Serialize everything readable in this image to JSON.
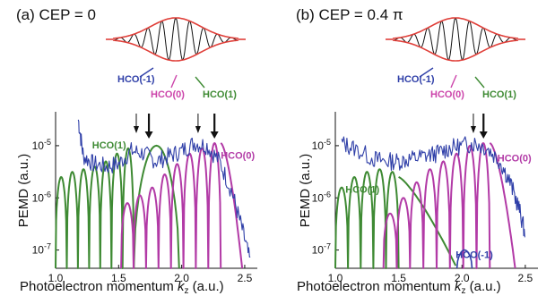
{
  "colors": {
    "blue": "#2f3fa8",
    "magenta": "#b23aa6",
    "green": "#3e8a33",
    "red": "#d03a2a",
    "env": "#e0403a",
    "pink": "#cc44aa"
  },
  "chart_data": [
    {
      "type": "line",
      "title": "(a) CEP = 0",
      "xlabel": "Photoelectron momentum",
      "xlabel_sym": "k",
      "xlabel_sub": "z",
      "xlabel_unit": "(a.u.)",
      "ylabel": "PEMD (a.u.)",
      "xlim": [
        1.0,
        2.6
      ],
      "ylim_log10": [
        -7.35,
        -4.35
      ],
      "xticks": [
        "1.0",
        "1.5",
        "2.0",
        "2.5"
      ],
      "yticks": [
        {
          "base": "10",
          "exp": "-7"
        },
        {
          "base": "10",
          "exp": "-6"
        },
        {
          "base": "10",
          "exp": "-5"
        }
      ],
      "inset_labels": [
        "HCO(-1)",
        "HCO(0)",
        "HCO(1)"
      ],
      "series_labels": [
        {
          "text": "HCO(1)",
          "x": 1.29,
          "y": -5.05,
          "color": "green"
        },
        {
          "text": "HCO(0)",
          "x": 2.31,
          "y": -5.25,
          "color": "magenta"
        }
      ],
      "arrows": [
        {
          "x": 1.64,
          "bold": false
        },
        {
          "x": 1.74,
          "bold": true
        },
        {
          "x": 2.13,
          "bold": false
        },
        {
          "x": 2.26,
          "bold": true
        }
      ],
      "green_curve": {
        "x_start": 1.0,
        "x_end": 1.62,
        "peaks": [
          -5.6,
          -5.5,
          -5.45,
          -5.4,
          -5.3,
          -5.15,
          -5.05
        ]
      },
      "green_bump": {
        "x_start": 1.62,
        "x_end": 1.98,
        "peak": -5.0
      },
      "magenta_curve": {
        "x_start": 1.52,
        "x_end": 2.31,
        "peaks": [
          -6.1,
          -5.95,
          -5.8,
          -5.55,
          -5.35,
          -5.15,
          -5.05,
          -4.95
        ]
      },
      "magenta_tail": {
        "x_start": 2.31,
        "x_end": 2.48
      },
      "blue_points": [
        [
          1.18,
          -4.5
        ],
        [
          1.22,
          -5.2
        ],
        [
          1.3,
          -5.35
        ],
        [
          1.4,
          -5.4
        ],
        [
          1.5,
          -5.35
        ],
        [
          1.6,
          -5.1
        ],
        [
          1.7,
          -5.15
        ],
        [
          1.8,
          -5.3
        ],
        [
          1.9,
          -5.2
        ],
        [
          2.0,
          -5.1
        ],
        [
          2.1,
          -4.95
        ],
        [
          2.2,
          -5.0
        ],
        [
          2.3,
          -5.3
        ],
        [
          2.4,
          -5.9
        ],
        [
          2.48,
          -6.6
        ],
        [
          2.55,
          -7.3
        ]
      ]
    },
    {
      "type": "line",
      "title": "(b) CEP = 0.4 π",
      "xlabel": "Photoelectron momentum",
      "xlabel_sym": "k",
      "xlabel_sub": "z",
      "xlabel_unit": "(a.u.)",
      "ylabel": "PEMD (a.u.)",
      "xlim": [
        1.0,
        2.6
      ],
      "ylim_log10": [
        -7.35,
        -4.35
      ],
      "xticks": [
        "1.0",
        "1.5",
        "2.0",
        "2.5"
      ],
      "yticks": [
        {
          "base": "10",
          "exp": "-7"
        },
        {
          "base": "10",
          "exp": "-6"
        },
        {
          "base": "10",
          "exp": "-5"
        }
      ],
      "inset_labels": [
        "HCO(-1)",
        "HCO(0)",
        "HCO(1)"
      ],
      "series_labels": [
        {
          "text": "HCO(1)",
          "x": 1.08,
          "y": -5.9,
          "color": "green"
        },
        {
          "text": "HCO(0)",
          "x": 2.28,
          "y": -5.3,
          "color": "magenta"
        },
        {
          "text": "HCO(-1)",
          "x": 1.95,
          "y": -7.15,
          "color": "blue"
        }
      ],
      "arrows": [
        {
          "x": 2.09,
          "bold": false
        },
        {
          "x": 2.17,
          "bold": true
        }
      ],
      "green_curve": {
        "x_start": 1.0,
        "x_end": 1.5,
        "peaks": [
          -5.8,
          -5.6,
          -5.5,
          -5.45,
          -5.5
        ]
      },
      "green_decay": {
        "x_start": 1.5,
        "x_end": 1.95,
        "from": -5.6,
        "to": -7.3
      },
      "magenta_curve": {
        "x_start": 1.38,
        "x_end": 2.22,
        "peaks": [
          -6.3,
          -6.0,
          -5.7,
          -5.45,
          -5.3,
          -5.15,
          -5.0,
          -4.95
        ]
      },
      "magenta_tail": {
        "x_start": 2.22,
        "x_end": 2.42
      },
      "hco_minus": {
        "x": 2.02,
        "peak": -7.0
      },
      "blue_points": [
        [
          1.05,
          -4.95
        ],
        [
          1.15,
          -5.05
        ],
        [
          1.3,
          -5.25
        ],
        [
          1.4,
          -5.3
        ],
        [
          1.5,
          -5.3
        ],
        [
          1.6,
          -5.25
        ],
        [
          1.7,
          -5.2
        ],
        [
          1.8,
          -5.15
        ],
        [
          1.9,
          -5.05
        ],
        [
          2.0,
          -5.0
        ],
        [
          2.1,
          -4.95
        ],
        [
          2.2,
          -5.05
        ],
        [
          2.3,
          -5.3
        ],
        [
          2.38,
          -5.7
        ],
        [
          2.45,
          -6.2
        ],
        [
          2.5,
          -6.7
        ]
      ]
    }
  ]
}
